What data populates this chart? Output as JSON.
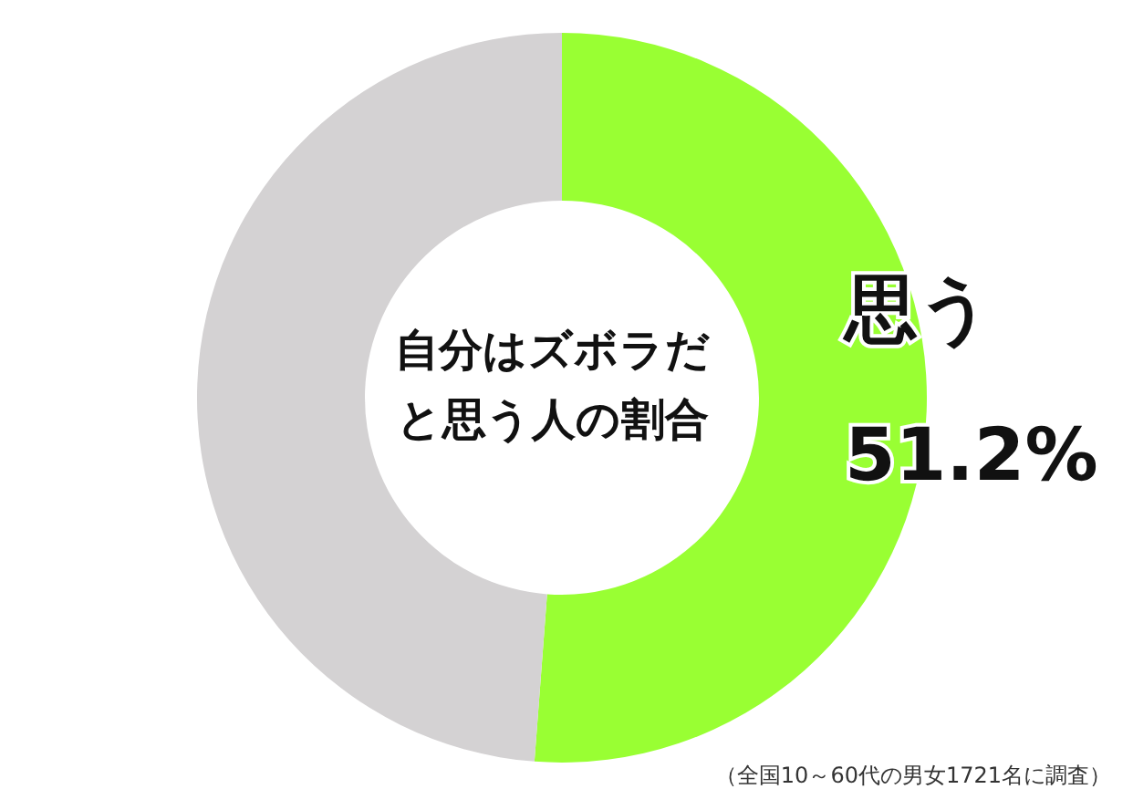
{
  "chart_data": {
    "type": "donut",
    "title": "自分はズボラだと思う人の割合",
    "categories": [
      "思う",
      null
    ],
    "values": [
      51.2,
      48.8
    ],
    "colors": [
      "#99ff33",
      "#d4d2d3"
    ],
    "value_labels": [
      "51.2%",
      null
    ],
    "annotations": [
      "（全国10～60代の男女1721名に調査）"
    ],
    "legend": false
  }
}
